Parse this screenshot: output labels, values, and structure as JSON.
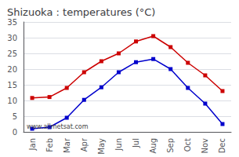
{
  "chart_data": {
    "type": "line",
    "title": "Shizuoka : temperatures (°C)",
    "categories": [
      "Jan",
      "Feb",
      "Mar",
      "Apr",
      "May",
      "Jun",
      "Jul",
      "Aug",
      "Sep",
      "Oct",
      "Nov",
      "Dec"
    ],
    "series": [
      {
        "color": "#cc0000",
        "values": [
          10.8,
          11.1,
          14.0,
          19.0,
          22.5,
          25.0,
          28.8,
          30.5,
          27.0,
          22.0,
          18.0,
          13.0
        ]
      },
      {
        "color": "#0000cc",
        "values": [
          1.0,
          1.5,
          4.5,
          10.2,
          14.2,
          19.0,
          22.2,
          23.2,
          20.0,
          14.0,
          9.0,
          2.5
        ]
      }
    ],
    "marker": "square",
    "ylim": [
      0,
      35
    ],
    "yticks": [
      0,
      5,
      10,
      15,
      20,
      25,
      30,
      35
    ],
    "grid": true,
    "annotations": [
      "www.allmetsat.com"
    ]
  }
}
